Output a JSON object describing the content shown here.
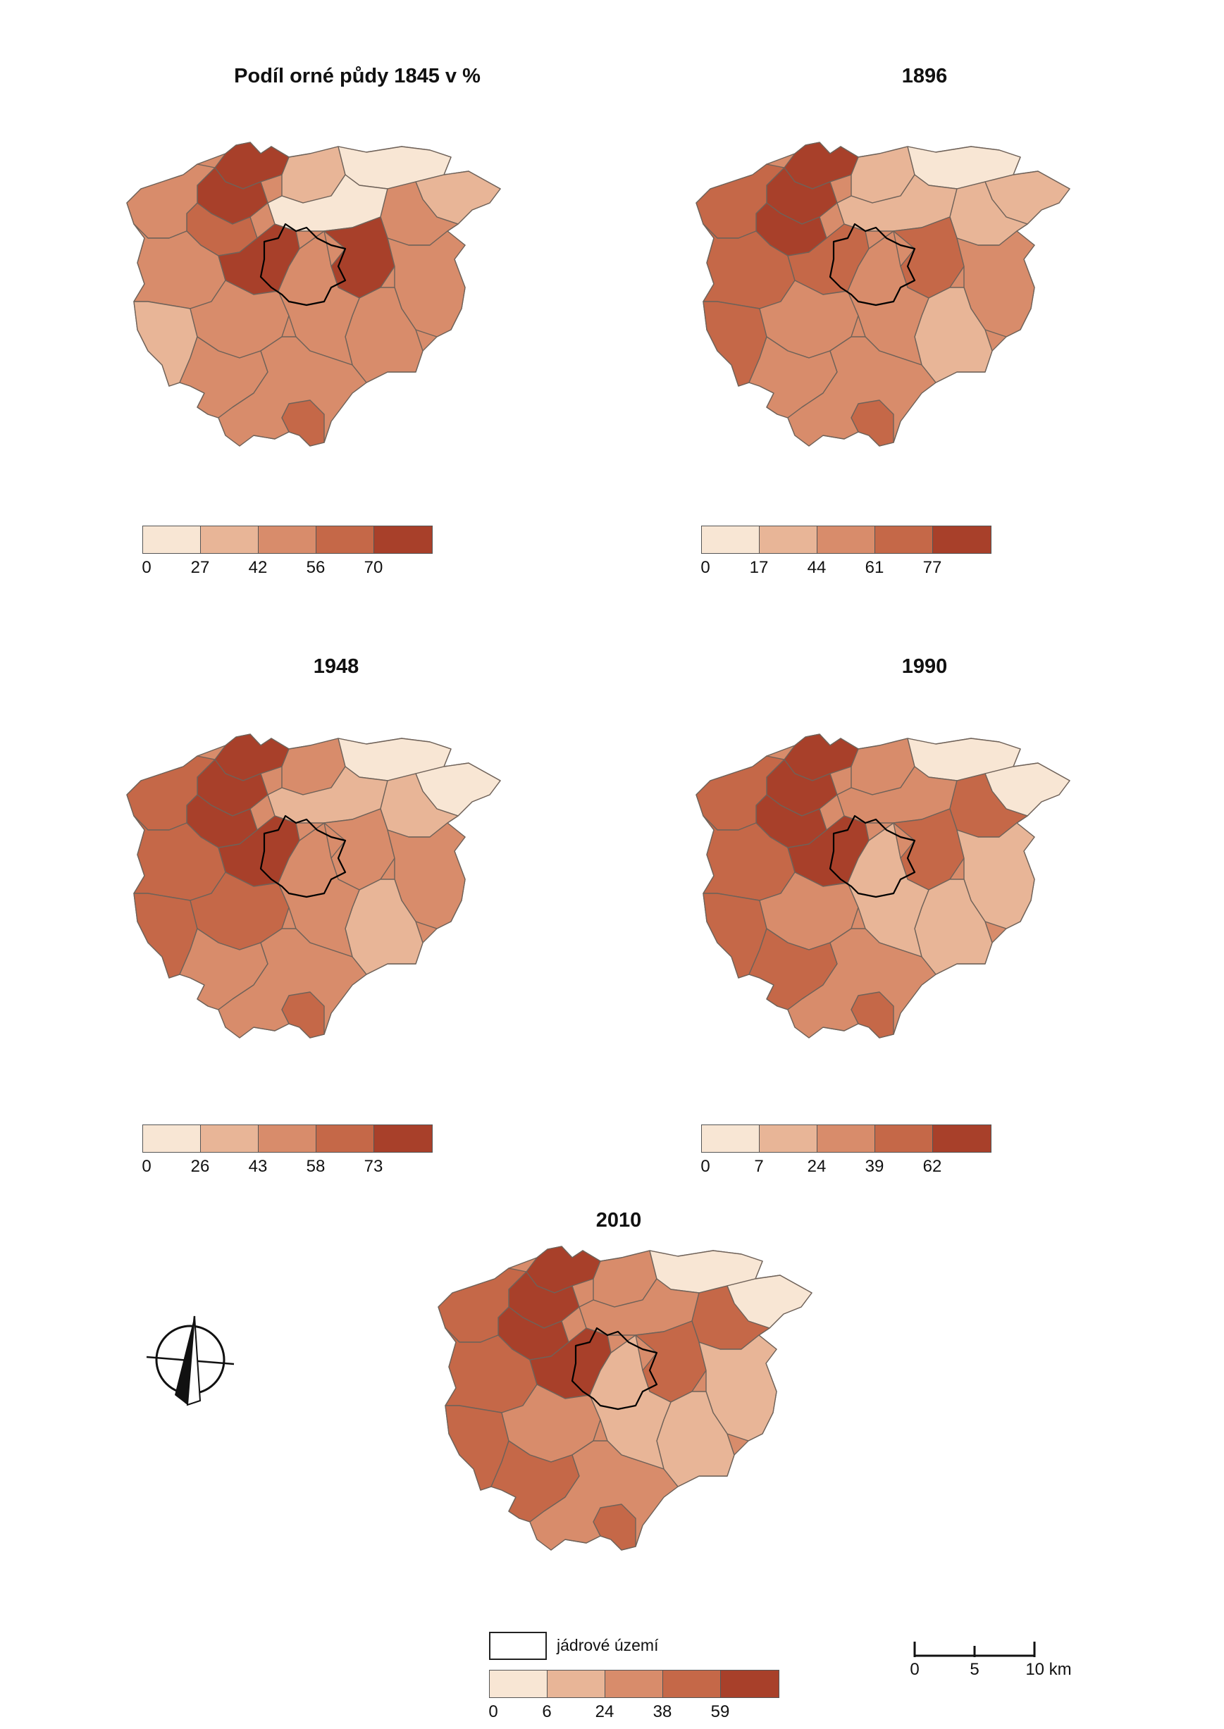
{
  "colors": [
    "#f8e6d4",
    "#e8b597",
    "#d88c6b",
    "#c56848",
    "#a8402a"
  ],
  "maps": [
    {
      "key": "m1845",
      "title": "Podíl orné půdy 1845 v %",
      "ticks": [
        "0",
        "27",
        "42",
        "56",
        "70"
      ]
    },
    {
      "key": "m1896",
      "title": "1896",
      "ticks": [
        "0",
        "17",
        "44",
        "61",
        "77"
      ]
    },
    {
      "key": "m1948",
      "title": "1948",
      "ticks": [
        "0",
        "26",
        "43",
        "58",
        "73"
      ]
    },
    {
      "key": "m1990",
      "title": "1990",
      "ticks": [
        "0",
        "7",
        "24",
        "39",
        "62"
      ]
    },
    {
      "key": "m2010",
      "title": "2010",
      "ticks": [
        "0",
        "6",
        "24",
        "38",
        "59"
      ]
    }
  ],
  "legend_core": {
    "label": "jádrové území"
  },
  "scale": {
    "labels": [
      "0",
      "5",
      "10 km"
    ]
  },
  "north_arrow": {
    "icon": "north-arrow-icon"
  }
}
